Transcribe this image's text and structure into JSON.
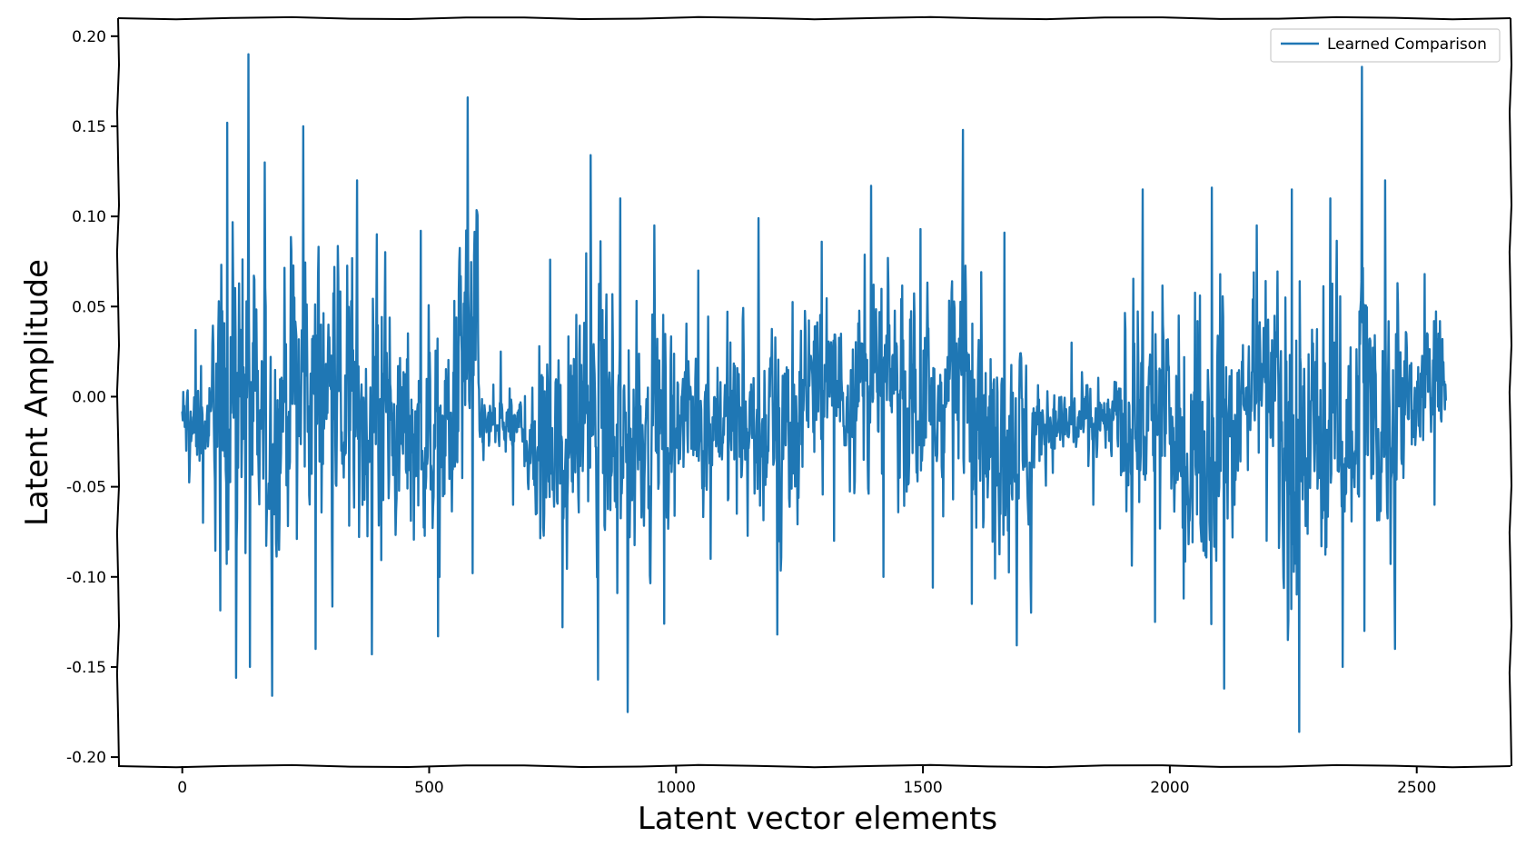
{
  "chart_data": {
    "type": "line",
    "title": "",
    "xlabel": "Latent vector elements",
    "ylabel": "Latent Amplitude",
    "xlim": [
      -130,
      2690
    ],
    "ylim": [
      -0.205,
      0.21
    ],
    "xticks": [
      0,
      500,
      1000,
      1500,
      2000,
      2500
    ],
    "xtick_labels": [
      "0",
      "500",
      "1000",
      "1500",
      "2000",
      "2500"
    ],
    "yticks": [
      -0.2,
      -0.15,
      -0.1,
      -0.05,
      0.0,
      0.05,
      0.1,
      0.15,
      0.2
    ],
    "ytick_labels": [
      "-0.20",
      "-0.15",
      "-0.10",
      "-0.05",
      "0.00",
      "0.05",
      "0.10",
      "0.15",
      "0.20"
    ],
    "grid": false,
    "legend_position": "top-right",
    "x_range": [
      0,
      2559
    ],
    "num_points": 2560,
    "series": [
      {
        "name": "Learned Comparison",
        "color": "#1f77b4",
        "envelope_bands": [
          {
            "x_start": 0,
            "x_end": 60,
            "max": 0.037,
            "min": -0.07
          },
          {
            "x_start": 60,
            "x_end": 130,
            "max": 0.152,
            "min": -0.156
          },
          {
            "x_start": 130,
            "x_end": 140,
            "max": 0.19,
            "min": -0.15
          },
          {
            "x_start": 140,
            "x_end": 200,
            "max": 0.13,
            "min": -0.166
          },
          {
            "x_start": 200,
            "x_end": 300,
            "max": 0.15,
            "min": -0.14
          },
          {
            "x_start": 300,
            "x_end": 420,
            "max": 0.12,
            "min": -0.143
          },
          {
            "x_start": 420,
            "x_end": 560,
            "max": 0.092,
            "min": -0.133
          },
          {
            "x_start": 560,
            "x_end": 600,
            "max": 0.166,
            "min": -0.098
          },
          {
            "x_start": 600,
            "x_end": 700,
            "max": 0.025,
            "min": -0.06
          },
          {
            "x_start": 700,
            "x_end": 800,
            "max": 0.076,
            "min": -0.128
          },
          {
            "x_start": 800,
            "x_end": 860,
            "max": 0.134,
            "min": -0.157
          },
          {
            "x_start": 860,
            "x_end": 920,
            "max": 0.11,
            "min": -0.175
          },
          {
            "x_start": 920,
            "x_end": 1000,
            "max": 0.095,
            "min": -0.126
          },
          {
            "x_start": 1000,
            "x_end": 1100,
            "max": 0.07,
            "min": -0.09
          },
          {
            "x_start": 1100,
            "x_end": 1250,
            "max": 0.099,
            "min": -0.132
          },
          {
            "x_start": 1250,
            "x_end": 1350,
            "max": 0.086,
            "min": -0.08
          },
          {
            "x_start": 1350,
            "x_end": 1450,
            "max": 0.117,
            "min": -0.1
          },
          {
            "x_start": 1450,
            "x_end": 1550,
            "max": 0.093,
            "min": -0.106
          },
          {
            "x_start": 1550,
            "x_end": 1620,
            "max": 0.148,
            "min": -0.115
          },
          {
            "x_start": 1620,
            "x_end": 1720,
            "max": 0.091,
            "min": -0.138
          },
          {
            "x_start": 1720,
            "x_end": 1900,
            "max": 0.03,
            "min": -0.06
          },
          {
            "x_start": 1900,
            "x_end": 2000,
            "max": 0.115,
            "min": -0.125
          },
          {
            "x_start": 2000,
            "x_end": 2040,
            "max": 0.045,
            "min": -0.112
          },
          {
            "x_start": 2040,
            "x_end": 2140,
            "max": 0.116,
            "min": -0.162
          },
          {
            "x_start": 2140,
            "x_end": 2220,
            "max": 0.095,
            "min": -0.08
          },
          {
            "x_start": 2220,
            "x_end": 2280,
            "max": 0.115,
            "min": -0.186
          },
          {
            "x_start": 2280,
            "x_end": 2380,
            "max": 0.11,
            "min": -0.15
          },
          {
            "x_start": 2380,
            "x_end": 2400,
            "max": 0.183,
            "min": -0.13
          },
          {
            "x_start": 2400,
            "x_end": 2480,
            "max": 0.12,
            "min": -0.14
          },
          {
            "x_start": 2480,
            "x_end": 2560,
            "max": 0.068,
            "min": -0.06
          }
        ]
      }
    ]
  }
}
